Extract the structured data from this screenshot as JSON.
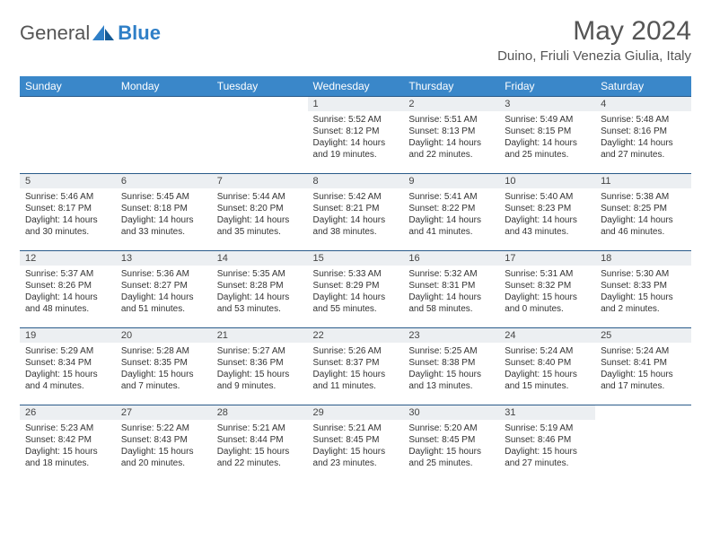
{
  "logo": {
    "general": "General",
    "blue": "Blue"
  },
  "title": "May 2024",
  "location": "Duino, Friuli Venezia Giulia, Italy",
  "colors": {
    "header_bg": "#3a87c9",
    "header_text": "#ffffff",
    "daynum_bg": "#eceff2",
    "border": "#2a5b8a",
    "logo_blue": "#2f7fc7",
    "text": "#333333"
  },
  "weekdays": [
    "Sunday",
    "Monday",
    "Tuesday",
    "Wednesday",
    "Thursday",
    "Friday",
    "Saturday"
  ],
  "weeks": [
    [
      {
        "blank": true
      },
      {
        "blank": true
      },
      {
        "blank": true
      },
      {
        "day": "1",
        "sunrise": "Sunrise: 5:52 AM",
        "sunset": "Sunset: 8:12 PM",
        "daylight": "Daylight: 14 hours and 19 minutes."
      },
      {
        "day": "2",
        "sunrise": "Sunrise: 5:51 AM",
        "sunset": "Sunset: 8:13 PM",
        "daylight": "Daylight: 14 hours and 22 minutes."
      },
      {
        "day": "3",
        "sunrise": "Sunrise: 5:49 AM",
        "sunset": "Sunset: 8:15 PM",
        "daylight": "Daylight: 14 hours and 25 minutes."
      },
      {
        "day": "4",
        "sunrise": "Sunrise: 5:48 AM",
        "sunset": "Sunset: 8:16 PM",
        "daylight": "Daylight: 14 hours and 27 minutes."
      }
    ],
    [
      {
        "day": "5",
        "sunrise": "Sunrise: 5:46 AM",
        "sunset": "Sunset: 8:17 PM",
        "daylight": "Daylight: 14 hours and 30 minutes."
      },
      {
        "day": "6",
        "sunrise": "Sunrise: 5:45 AM",
        "sunset": "Sunset: 8:18 PM",
        "daylight": "Daylight: 14 hours and 33 minutes."
      },
      {
        "day": "7",
        "sunrise": "Sunrise: 5:44 AM",
        "sunset": "Sunset: 8:20 PM",
        "daylight": "Daylight: 14 hours and 35 minutes."
      },
      {
        "day": "8",
        "sunrise": "Sunrise: 5:42 AM",
        "sunset": "Sunset: 8:21 PM",
        "daylight": "Daylight: 14 hours and 38 minutes."
      },
      {
        "day": "9",
        "sunrise": "Sunrise: 5:41 AM",
        "sunset": "Sunset: 8:22 PM",
        "daylight": "Daylight: 14 hours and 41 minutes."
      },
      {
        "day": "10",
        "sunrise": "Sunrise: 5:40 AM",
        "sunset": "Sunset: 8:23 PM",
        "daylight": "Daylight: 14 hours and 43 minutes."
      },
      {
        "day": "11",
        "sunrise": "Sunrise: 5:38 AM",
        "sunset": "Sunset: 8:25 PM",
        "daylight": "Daylight: 14 hours and 46 minutes."
      }
    ],
    [
      {
        "day": "12",
        "sunrise": "Sunrise: 5:37 AM",
        "sunset": "Sunset: 8:26 PM",
        "daylight": "Daylight: 14 hours and 48 minutes."
      },
      {
        "day": "13",
        "sunrise": "Sunrise: 5:36 AM",
        "sunset": "Sunset: 8:27 PM",
        "daylight": "Daylight: 14 hours and 51 minutes."
      },
      {
        "day": "14",
        "sunrise": "Sunrise: 5:35 AM",
        "sunset": "Sunset: 8:28 PM",
        "daylight": "Daylight: 14 hours and 53 minutes."
      },
      {
        "day": "15",
        "sunrise": "Sunrise: 5:33 AM",
        "sunset": "Sunset: 8:29 PM",
        "daylight": "Daylight: 14 hours and 55 minutes."
      },
      {
        "day": "16",
        "sunrise": "Sunrise: 5:32 AM",
        "sunset": "Sunset: 8:31 PM",
        "daylight": "Daylight: 14 hours and 58 minutes."
      },
      {
        "day": "17",
        "sunrise": "Sunrise: 5:31 AM",
        "sunset": "Sunset: 8:32 PM",
        "daylight": "Daylight: 15 hours and 0 minutes."
      },
      {
        "day": "18",
        "sunrise": "Sunrise: 5:30 AM",
        "sunset": "Sunset: 8:33 PM",
        "daylight": "Daylight: 15 hours and 2 minutes."
      }
    ],
    [
      {
        "day": "19",
        "sunrise": "Sunrise: 5:29 AM",
        "sunset": "Sunset: 8:34 PM",
        "daylight": "Daylight: 15 hours and 4 minutes."
      },
      {
        "day": "20",
        "sunrise": "Sunrise: 5:28 AM",
        "sunset": "Sunset: 8:35 PM",
        "daylight": "Daylight: 15 hours and 7 minutes."
      },
      {
        "day": "21",
        "sunrise": "Sunrise: 5:27 AM",
        "sunset": "Sunset: 8:36 PM",
        "daylight": "Daylight: 15 hours and 9 minutes."
      },
      {
        "day": "22",
        "sunrise": "Sunrise: 5:26 AM",
        "sunset": "Sunset: 8:37 PM",
        "daylight": "Daylight: 15 hours and 11 minutes."
      },
      {
        "day": "23",
        "sunrise": "Sunrise: 5:25 AM",
        "sunset": "Sunset: 8:38 PM",
        "daylight": "Daylight: 15 hours and 13 minutes."
      },
      {
        "day": "24",
        "sunrise": "Sunrise: 5:24 AM",
        "sunset": "Sunset: 8:40 PM",
        "daylight": "Daylight: 15 hours and 15 minutes."
      },
      {
        "day": "25",
        "sunrise": "Sunrise: 5:24 AM",
        "sunset": "Sunset: 8:41 PM",
        "daylight": "Daylight: 15 hours and 17 minutes."
      }
    ],
    [
      {
        "day": "26",
        "sunrise": "Sunrise: 5:23 AM",
        "sunset": "Sunset: 8:42 PM",
        "daylight": "Daylight: 15 hours and 18 minutes."
      },
      {
        "day": "27",
        "sunrise": "Sunrise: 5:22 AM",
        "sunset": "Sunset: 8:43 PM",
        "daylight": "Daylight: 15 hours and 20 minutes."
      },
      {
        "day": "28",
        "sunrise": "Sunrise: 5:21 AM",
        "sunset": "Sunset: 8:44 PM",
        "daylight": "Daylight: 15 hours and 22 minutes."
      },
      {
        "day": "29",
        "sunrise": "Sunrise: 5:21 AM",
        "sunset": "Sunset: 8:45 PM",
        "daylight": "Daylight: 15 hours and 23 minutes."
      },
      {
        "day": "30",
        "sunrise": "Sunrise: 5:20 AM",
        "sunset": "Sunset: 8:45 PM",
        "daylight": "Daylight: 15 hours and 25 minutes."
      },
      {
        "day": "31",
        "sunrise": "Sunrise: 5:19 AM",
        "sunset": "Sunset: 8:46 PM",
        "daylight": "Daylight: 15 hours and 27 minutes."
      },
      {
        "blank": true
      }
    ]
  ]
}
